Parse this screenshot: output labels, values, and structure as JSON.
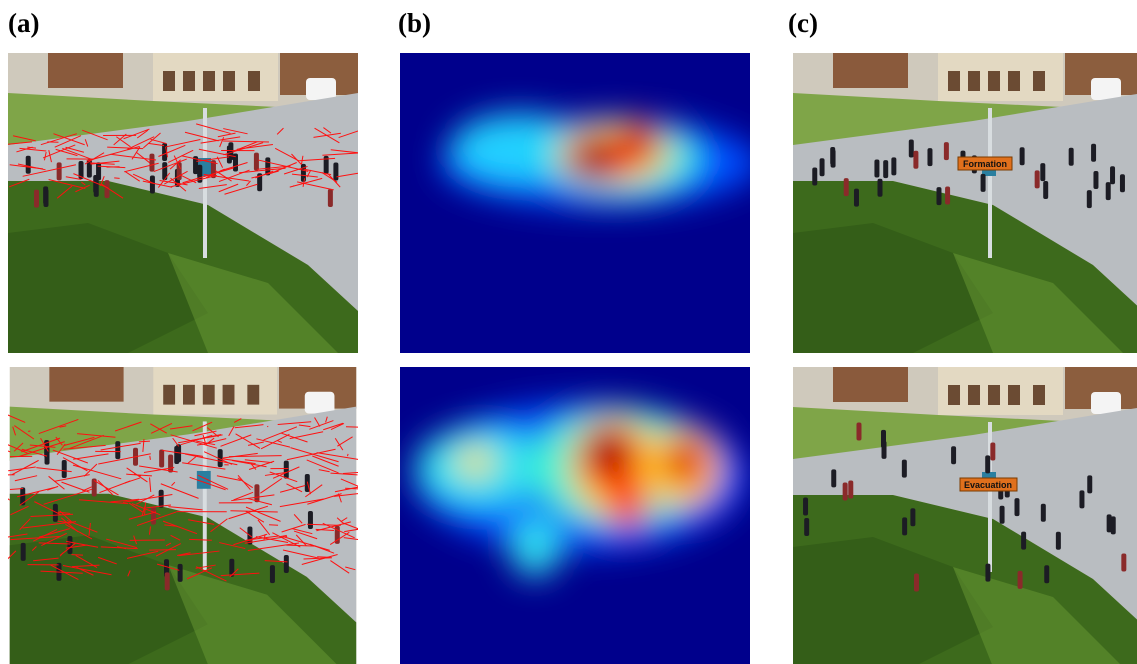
{
  "panels": [
    {
      "label": "(a)"
    },
    {
      "label": "(b)"
    },
    {
      "label": "(c)"
    }
  ],
  "annotations": [
    "Formation",
    "Evacuation"
  ]
}
